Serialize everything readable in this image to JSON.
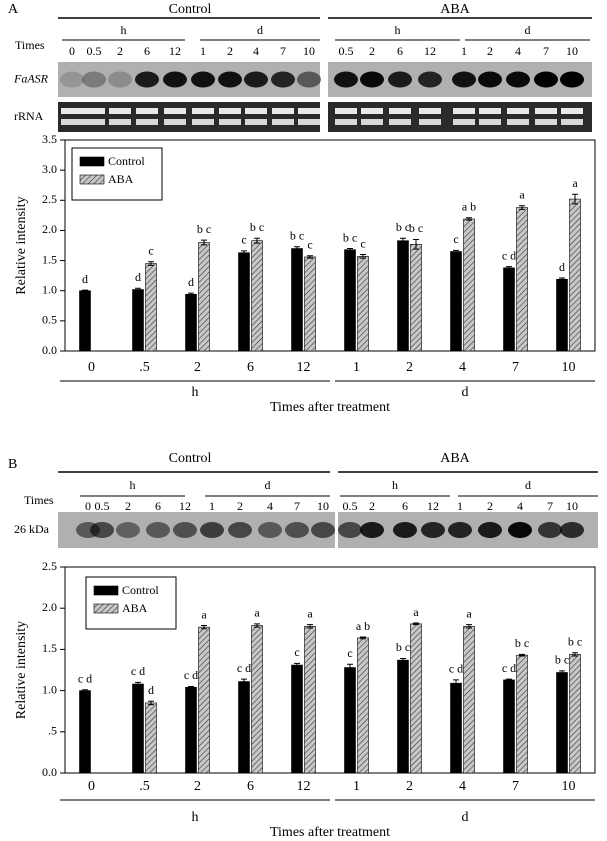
{
  "panel_a": {
    "label": "A",
    "times_label": "Times",
    "rows": [
      "FaASR",
      "rRNA"
    ],
    "conditions": [
      {
        "name": "Control",
        "groups": [
          {
            "unit": "h",
            "times": [
              "0",
              "0.5",
              "2",
              "6",
              "12"
            ]
          },
          {
            "unit": "d",
            "times": [
              "1",
              "2",
              "4",
              "7",
              "10"
            ]
          }
        ]
      },
      {
        "name": "ABA",
        "groups": [
          {
            "unit": "h",
            "times": [
              "0.5",
              "2",
              "6",
              "12"
            ]
          },
          {
            "unit": "d",
            "times": [
              "1",
              "2",
              "4",
              "7",
              "10"
            ]
          }
        ]
      }
    ]
  },
  "panel_b": {
    "label": "B",
    "times_label": "Times",
    "rows": [
      "26 kDa"
    ],
    "conditions": [
      {
        "name": "Control",
        "groups": [
          {
            "unit": "h",
            "times": [
              "0",
              "0.5",
              "2",
              "6",
              "12"
            ]
          },
          {
            "unit": "d",
            "times": [
              "1",
              "2",
              "4",
              "7",
              "10"
            ]
          }
        ]
      },
      {
        "name": "ABA",
        "groups": [
          {
            "unit": "h",
            "times": [
              "0.5",
              "2",
              "6",
              "12"
            ]
          },
          {
            "unit": "d",
            "times": [
              "1",
              "2",
              "4",
              "7",
              "10"
            ]
          }
        ]
      }
    ]
  },
  "chart_data": [
    {
      "type": "bar",
      "xlabel": "Times after treatment",
      "ylabel": "Relative intensity",
      "categories": [
        "0",
        ".5",
        "2",
        "6",
        "12",
        "1",
        "2",
        "4",
        "7",
        "10"
      ],
      "x_groups": [
        "h",
        "d"
      ],
      "ylim": [
        0,
        3.5
      ],
      "yticks": [
        {
          "value": 0,
          "label": "0.0"
        },
        {
          "value": 0.5,
          "label": "0.5"
        },
        {
          "value": 1,
          "label": "1.0"
        },
        {
          "value": 1.5,
          "label": "1.5"
        },
        {
          "value": 2,
          "label": "2.0"
        },
        {
          "value": 2.5,
          "label": "2.5"
        },
        {
          "value": 3,
          "label": "3.0"
        },
        {
          "value": 3.5,
          "label": "3.5"
        }
      ],
      "series": [
        {
          "name": "Control",
          "color": "#000000",
          "hatch": false,
          "values": [
            1.0,
            1.02,
            0.94,
            1.63,
            1.7,
            1.68,
            1.83,
            1.65,
            1.38,
            1.19
          ],
          "errors": [
            0.01,
            0.02,
            0.02,
            0.03,
            0.03,
            0.02,
            0.04,
            0.02,
            0.02,
            0.02
          ],
          "letters": [
            "d",
            "d",
            "d",
            "c",
            "b c",
            "b c",
            "b c",
            "c",
            "c d",
            "d"
          ]
        },
        {
          "name": "ABA",
          "color": "#c8c8c8",
          "hatch": true,
          "values": [
            null,
            1.45,
            1.8,
            1.83,
            1.56,
            1.57,
            1.77,
            2.19,
            2.38,
            2.52
          ],
          "errors": [
            null,
            0.03,
            0.04,
            0.04,
            0.02,
            0.03,
            0.08,
            0.02,
            0.03,
            0.08
          ],
          "letters": [
            null,
            "c",
            "b c",
            "b c",
            "c",
            "c",
            "b c",
            "a b",
            "a",
            "a"
          ]
        }
      ]
    },
    {
      "type": "bar",
      "xlabel": "Times after treatment",
      "ylabel": "Relative intensity",
      "categories": [
        "0",
        ".5",
        "2",
        "6",
        "12",
        "1",
        "2",
        "4",
        "7",
        "10"
      ],
      "x_groups": [
        "h",
        "d"
      ],
      "ylim": [
        0,
        2.5
      ],
      "yticks": [
        {
          "value": 0,
          "label": "0.0"
        },
        {
          "value": 0.5,
          "label": ".5"
        },
        {
          "value": 1,
          "label": "1.0"
        },
        {
          "value": 1.5,
          "label": "1.5"
        },
        {
          "value": 2,
          "label": "2.0"
        },
        {
          "value": 2.5,
          "label": "2.5"
        }
      ],
      "series": [
        {
          "name": "Control",
          "color": "#000000",
          "hatch": false,
          "values": [
            1.0,
            1.08,
            1.04,
            1.11,
            1.31,
            1.28,
            1.37,
            1.09,
            1.13,
            1.22
          ],
          "errors": [
            0.01,
            0.02,
            0.01,
            0.03,
            0.02,
            0.04,
            0.02,
            0.04,
            0.01,
            0.02
          ],
          "letters": [
            "c d",
            "c d",
            "c d",
            "c d",
            "c",
            "c",
            "b c",
            "c d",
            "c d",
            "b c"
          ]
        },
        {
          "name": "ABA",
          "color": "#c8c8c8",
          "hatch": true,
          "values": [
            null,
            0.85,
            1.77,
            1.79,
            1.78,
            1.64,
            1.81,
            1.78,
            1.43,
            1.44
          ],
          "errors": [
            null,
            0.02,
            0.02,
            0.02,
            0.02,
            0.01,
            0.01,
            0.02,
            0.01,
            0.02
          ],
          "letters": [
            null,
            "d",
            "a",
            "a",
            "a",
            "a b",
            "a",
            "a",
            "b c",
            "b c"
          ]
        }
      ]
    }
  ]
}
